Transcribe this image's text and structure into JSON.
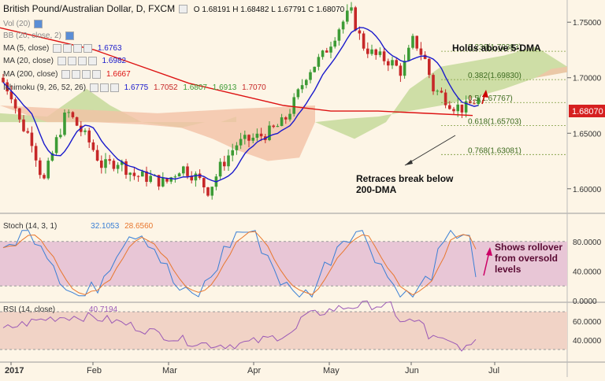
{
  "header": {
    "title": "British Pound/Australian Dollar, D, FXCM",
    "ohlc": "O 1.68191 H 1.68482 L 1.67791 C 1.68070"
  },
  "indicators": {
    "vol": "Vol (20)",
    "bb": "BB (20, close, 2)",
    "ma5": {
      "label": "MA (5, close)",
      "value": "1.6763",
      "color": "#1a1acc"
    },
    "ma20": {
      "label": "MA (20, close)",
      "value": "1.6982",
      "color": "#1a1acc"
    },
    "ma200": {
      "label": "MA (200, close)",
      "value": "1.6667",
      "color": "#dd1111"
    },
    "ichimoku": {
      "label": "Ichimoku (9, 26, 52, 26)",
      "values": [
        "1.6775",
        "1.7052",
        "1.6807",
        "1.6913",
        "1.7070"
      ]
    }
  },
  "annotations": {
    "holds": "Holds above 5-DMA",
    "retraces": "Retraces break below\n200-DMA",
    "rollover": "Shows rollover\nfrom oversold\nlevels"
  },
  "price_axis": {
    "ticks": [
      "1.75000",
      "1.70000",
      "1.65000",
      "1.60000"
    ],
    "current": "1.68070"
  },
  "fib": [
    {
      "label": "0.236(1.72383)",
      "value": 1.72383
    },
    {
      "label": "0.382(1.69830)",
      "value": 1.6983
    },
    {
      "label": "0.5(1.67767)",
      "value": 1.67767
    },
    {
      "label": "0.618(1.65703)",
      "value": 1.65703
    },
    {
      "label": "0.768(1.63081)",
      "value": 1.63081
    }
  ],
  "stoch": {
    "label": "Stoch (14, 3, 1)",
    "k": "32.1053",
    "d": "28.6560",
    "ticks": [
      "80.0000",
      "40.0000",
      "0.0000"
    ]
  },
  "rsi": {
    "label": "RSI (14, close)",
    "value": "40.7194",
    "ticks": [
      "60.0000",
      "40.0000"
    ]
  },
  "time_axis": [
    "2017",
    "Feb",
    "Mar",
    "Apr",
    "May",
    "Jun",
    "Jul"
  ],
  "colors": {
    "bg": "#fdf5e6",
    "up": "#3d9b35",
    "down": "#c62828",
    "ma200": "#dd1111",
    "ma20": "#1a1acc",
    "cloud_bull": "#c5d99a",
    "cloud_bear": "#f2c2a6",
    "stoch_k": "#3a7fd5",
    "stoch_d": "#e8772e",
    "stoch_band": "#e8c6d6",
    "rsi_line": "#9b59b6",
    "rsi_band": "#f1d3c6"
  },
  "chart_data": {
    "type": "candlestick",
    "title": "British Pound/Australian Dollar, D, FXCM",
    "ylim": [
      1.58,
      1.77
    ],
    "key_points": [
      {
        "x": "2017",
        "close": 1.69
      },
      {
        "x": "Feb",
        "close": 1.64
      },
      {
        "x": "Mar",
        "close": 1.615
      },
      {
        "x": "Apr",
        "close": 1.64
      },
      {
        "x": "May",
        "close": 1.74
      },
      {
        "x": "Jun",
        "close": 1.72
      },
      {
        "x": "last",
        "close": 1.6807
      }
    ],
    "series": [
      {
        "name": "MA (5, close)",
        "last": 1.6763
      },
      {
        "name": "MA (20, close)",
        "last": 1.6982
      },
      {
        "name": "MA (200, close)",
        "last": 1.6667
      }
    ]
  }
}
